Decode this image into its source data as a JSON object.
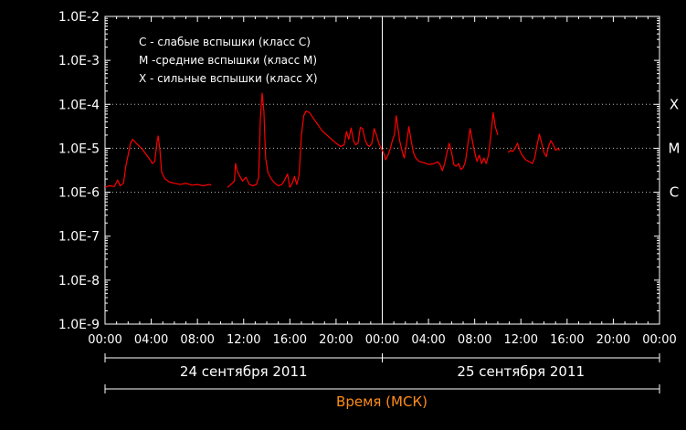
{
  "chart_data": {
    "type": "line",
    "title": "",
    "xlabel": "Время (МСК)",
    "ylabel": "",
    "y_scale": "log",
    "ylim": [
      "1.0E-9",
      "1.0E-2"
    ],
    "y_ticks": [
      "1.0E-2",
      "1.0E-3",
      "1.0E-4",
      "1.0E-5",
      "1.0E-6",
      "1.0E-7",
      "1.0E-8",
      "1.0E-9"
    ],
    "x_ticks": [
      "00:00",
      "04:00",
      "08:00",
      "12:00",
      "16:00",
      "20:00",
      "00:00",
      "04:00",
      "08:00",
      "12:00",
      "16:00",
      "20:00",
      "00:00"
    ],
    "xlim_hours": [
      0,
      48
    ],
    "dates": [
      {
        "label": "24 сентября 2011",
        "start_hour": 0,
        "end_hour": 24
      },
      {
        "label": "25 сентября 2011",
        "start_hour": 24,
        "end_hour": 48
      }
    ],
    "legend": [
      "C - слабые вспышки (класс C)",
      "M -средние вспышки (класс M)",
      "X - сильные вспышки (класс X)"
    ],
    "flare_classes": [
      {
        "label": "X",
        "value": 0.0001
      },
      {
        "label": "M",
        "value": 1e-05
      },
      {
        "label": "C",
        "value": 1e-06
      }
    ],
    "grid": "dotted lines at class thresholds",
    "colors": {
      "series": "#ff0000",
      "axes": "#ffffff",
      "background": "#000000",
      "xlabel": "#ff8c1a"
    },
    "series": [
      {
        "segments": [
          [
            [
              0,
              1.3e-06
            ],
            [
              0.4,
              1.4e-06
            ],
            [
              0.8,
              1.35e-06
            ],
            [
              1.1,
              1.9e-06
            ],
            [
              1.3,
              1.4e-06
            ],
            [
              1.6,
              1.6e-06
            ],
            [
              1.8,
              4e-06
            ],
            [
              2.0,
              7e-06
            ],
            [
              2.2,
              1.3e-05
            ],
            [
              2.4,
              1.6e-05
            ],
            [
              2.7,
              1.3e-05
            ],
            [
              3.0,
              1.1e-05
            ],
            [
              3.3,
              9e-06
            ],
            [
              3.6,
              7e-06
            ],
            [
              3.9,
              5.5e-06
            ],
            [
              4.1,
              4.5e-06
            ],
            [
              4.3,
              5e-06
            ],
            [
              4.5,
              1.4e-05
            ],
            [
              4.6,
              1.9e-05
            ],
            [
              4.75,
              9e-06
            ],
            [
              4.9,
              2.8e-06
            ],
            [
              5.2,
              2e-06
            ],
            [
              5.6,
              1.7e-06
            ],
            [
              6.0,
              1.6e-06
            ],
            [
              6.5,
              1.5e-06
            ],
            [
              7.0,
              1.6e-06
            ],
            [
              7.5,
              1.45e-06
            ],
            [
              8.0,
              1.5e-06
            ],
            [
              8.5,
              1.4e-06
            ],
            [
              9.0,
              1.5e-06
            ],
            [
              9.2,
              1.45e-06
            ]
          ],
          [
            [
              10.6,
              1.3e-06
            ],
            [
              10.9,
              1.5e-06
            ],
            [
              11.2,
              1.8e-06
            ],
            [
              11.3,
              4.5e-06
            ],
            [
              11.45,
              3e-06
            ],
            [
              11.6,
              2.5e-06
            ],
            [
              11.9,
              1.8e-06
            ],
            [
              12.2,
              2.2e-06
            ],
            [
              12.5,
              1.5e-06
            ],
            [
              12.8,
              1.4e-06
            ],
            [
              13.1,
              1.5e-06
            ],
            [
              13.3,
              2.2e-06
            ],
            [
              13.45,
              5e-05
            ],
            [
              13.6,
              0.00018
            ],
            [
              13.75,
              7e-05
            ],
            [
              13.9,
              6e-06
            ],
            [
              14.1,
              2.8e-06
            ],
            [
              14.4,
              2e-06
            ],
            [
              14.7,
              1.6e-06
            ],
            [
              15.0,
              1.4e-06
            ],
            [
              15.3,
              1.5e-06
            ],
            [
              15.5,
              1.8e-06
            ],
            [
              15.8,
              2.6e-06
            ],
            [
              16.0,
              1.3e-06
            ],
            [
              16.2,
              1.6e-06
            ],
            [
              16.4,
              2.3e-06
            ],
            [
              16.6,
              1.5e-06
            ],
            [
              16.8,
              2.5e-06
            ],
            [
              17.0,
              2e-05
            ],
            [
              17.2,
              5.5e-05
            ],
            [
              17.4,
              7e-05
            ],
            [
              17.7,
              6.5e-05
            ],
            [
              18.0,
              5e-05
            ],
            [
              18.4,
              3.5e-05
            ],
            [
              18.8,
              2.5e-05
            ],
            [
              19.2,
              2e-05
            ],
            [
              19.6,
              1.6e-05
            ],
            [
              20.0,
              1.3e-05
            ],
            [
              20.4,
              1.1e-05
            ],
            [
              20.7,
              1.2e-05
            ],
            [
              20.9,
              2.4e-05
            ],
            [
              21.1,
              1.6e-05
            ],
            [
              21.3,
              2.9e-05
            ],
            [
              21.5,
              1.5e-05
            ],
            [
              21.7,
              1.2e-05
            ],
            [
              21.9,
              1.3e-05
            ],
            [
              22.1,
              3e-05
            ],
            [
              22.3,
              2.8e-05
            ],
            [
              22.5,
              1.6e-05
            ],
            [
              22.7,
              1.2e-05
            ],
            [
              22.9,
              1.1e-05
            ],
            [
              23.1,
              1.3e-05
            ],
            [
              23.3,
              2.8e-05
            ],
            [
              23.5,
              2e-05
            ],
            [
              23.7,
              1.3e-05
            ],
            [
              23.9,
              1e-05
            ],
            [
              24.1,
              8e-06
            ],
            [
              24.3,
              5.5e-06
            ],
            [
              24.5,
              7e-06
            ],
            [
              24.7,
              1e-05
            ],
            [
              24.9,
              1.6e-05
            ],
            [
              25.05,
              2e-05
            ],
            [
              25.2,
              5.5e-05
            ],
            [
              25.35,
              3e-05
            ],
            [
              25.5,
              1.5e-05
            ],
            [
              25.7,
              9e-06
            ],
            [
              25.9,
              6e-06
            ],
            [
              26.1,
              1.3e-05
            ],
            [
              26.3,
              3.1e-05
            ],
            [
              26.5,
              1.5e-05
            ],
            [
              26.7,
              8e-06
            ],
            [
              26.9,
              6e-06
            ],
            [
              27.2,
              5e-06
            ],
            [
              27.6,
              4.7e-06
            ],
            [
              28.0,
              4.3e-06
            ],
            [
              28.4,
              4.4e-06
            ],
            [
              28.8,
              4.9e-06
            ],
            [
              29.0,
              4.3e-06
            ],
            [
              29.2,
              3.1e-06
            ],
            [
              29.4,
              4.5e-06
            ],
            [
              29.6,
              8e-06
            ],
            [
              29.8,
              1.3e-05
            ],
            [
              30.0,
              8e-06
            ],
            [
              30.2,
              4.2e-06
            ],
            [
              30.4,
              3.9e-06
            ],
            [
              30.6,
              4.5e-06
            ],
            [
              30.8,
              3.3e-06
            ],
            [
              31.0,
              3.6e-06
            ],
            [
              31.2,
              5e-06
            ],
            [
              31.4,
              1.2e-05
            ],
            [
              31.6,
              2.8e-05
            ],
            [
              31.8,
              1.5e-05
            ],
            [
              32.0,
              8e-06
            ],
            [
              32.2,
              5e-06
            ],
            [
              32.4,
              7e-06
            ],
            [
              32.6,
              4.5e-06
            ],
            [
              32.8,
              6e-06
            ],
            [
              33.0,
              4.5e-06
            ],
            [
              33.2,
              7e-06
            ],
            [
              33.4,
              2e-05
            ],
            [
              33.6,
              6.5e-05
            ],
            [
              33.8,
              3e-05
            ],
            [
              34.0,
              2e-05
            ]
          ],
          [
            [
              34.9,
              8e-06
            ],
            [
              35.1,
              9e-06
            ],
            [
              35.3,
              8.5e-06
            ],
            [
              35.5,
              1e-05
            ],
            [
              35.7,
              1.3e-05
            ],
            [
              35.9,
              9e-06
            ],
            [
              36.1,
              7e-06
            ],
            [
              36.4,
              5.5e-06
            ],
            [
              36.7,
              5e-06
            ],
            [
              37.0,
              4.5e-06
            ],
            [
              37.2,
              6e-06
            ],
            [
              37.4,
              1.2e-05
            ],
            [
              37.6,
              2.1e-05
            ],
            [
              37.8,
              1.3e-05
            ],
            [
              38.0,
              8e-06
            ],
            [
              38.2,
              6.5e-06
            ],
            [
              38.4,
              1.1e-05
            ],
            [
              38.6,
              1.5e-05
            ],
            [
              38.8,
              1.2e-05
            ],
            [
              39.0,
              9e-06
            ],
            [
              39.2,
              1e-05
            ],
            [
              39.35,
              9e-06
            ]
          ]
        ]
      }
    ]
  }
}
